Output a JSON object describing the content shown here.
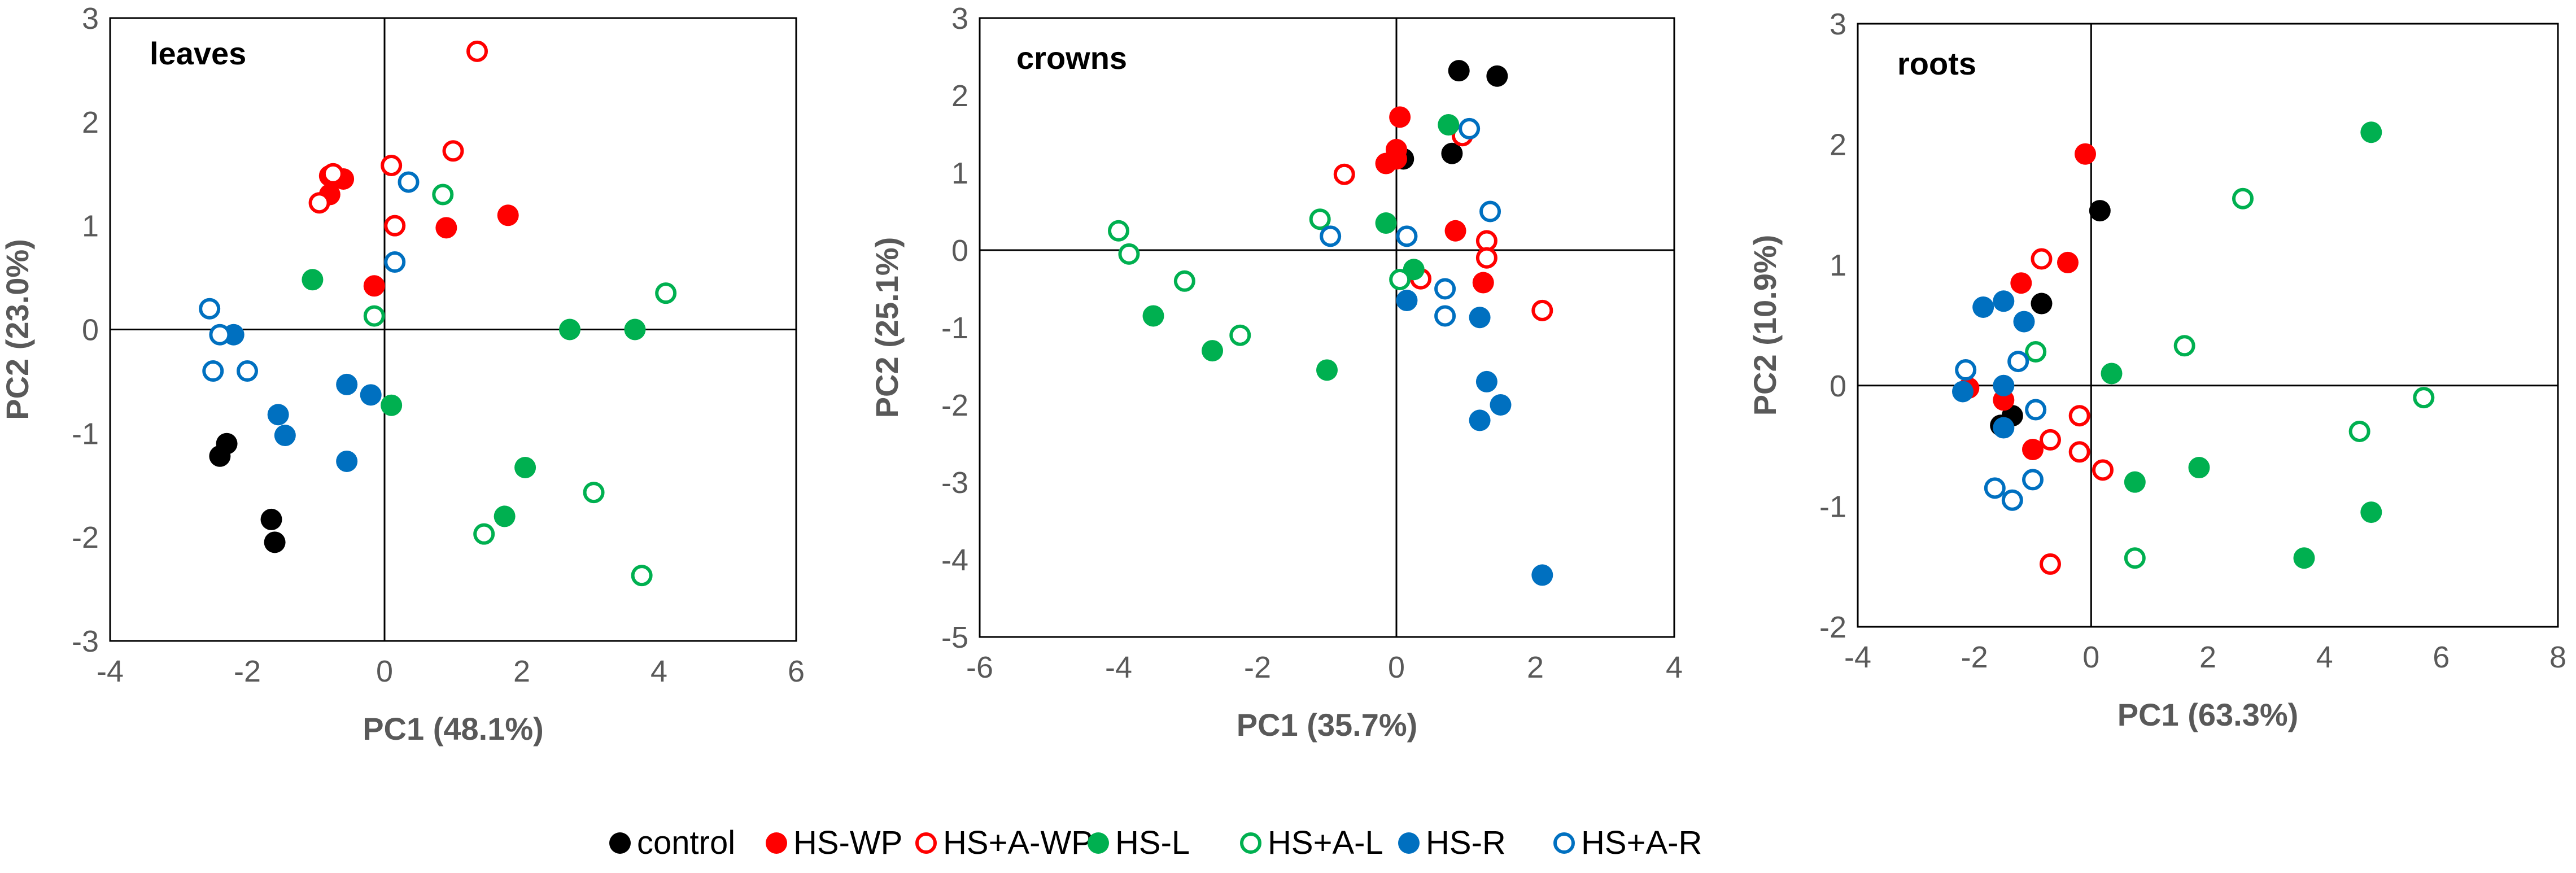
{
  "chart_data": [
    {
      "type": "scatter",
      "title": "leaves",
      "xlabel": "PC1 (48.1%)",
      "ylabel": "PC2 (23.0%)",
      "xlim": [
        -4,
        6
      ],
      "ylim": [
        -3,
        3
      ],
      "xticks": [
        -4,
        -2,
        0,
        2,
        4,
        6
      ],
      "yticks": [
        -3,
        -2,
        -1,
        0,
        1,
        2,
        3
      ],
      "series": [
        {
          "name": "control",
          "points": [
            [
              -2.3,
              -1.1
            ],
            [
              -2.4,
              -1.22
            ],
            [
              -1.65,
              -1.83
            ],
            [
              -1.6,
              -2.05
            ]
          ]
        },
        {
          "name": "HS-WP",
          "points": [
            [
              -0.8,
              1.48
            ],
            [
              -0.6,
              1.45
            ],
            [
              -0.8,
              1.3
            ],
            [
              0.9,
              0.98
            ],
            [
              1.8,
              1.1
            ],
            [
              -0.15,
              0.42
            ]
          ]
        },
        {
          "name": "HS+A-WP",
          "points": [
            [
              1.35,
              2.68
            ],
            [
              -0.75,
              1.5
            ],
            [
              -0.95,
              1.22
            ],
            [
              0.1,
              1.58
            ],
            [
              1.0,
              1.72
            ],
            [
              0.15,
              1.0
            ]
          ]
        },
        {
          "name": "HS-L",
          "points": [
            [
              -1.05,
              0.48
            ],
            [
              0.1,
              -0.73
            ],
            [
              2.7,
              0.0
            ],
            [
              3.65,
              0.0
            ],
            [
              2.05,
              -1.33
            ],
            [
              1.75,
              -1.8
            ]
          ]
        },
        {
          "name": "HS+A-L",
          "points": [
            [
              0.85,
              1.3
            ],
            [
              -0.15,
              0.13
            ],
            [
              4.1,
              0.35
            ],
            [
              3.05,
              -1.57
            ],
            [
              1.45,
              -1.97
            ],
            [
              3.75,
              -2.37
            ]
          ]
        },
        {
          "name": "HS-R",
          "points": [
            [
              -2.2,
              -0.05
            ],
            [
              -1.55,
              -0.82
            ],
            [
              -1.45,
              -1.02
            ],
            [
              -0.55,
              -0.53
            ],
            [
              -0.2,
              -0.63
            ],
            [
              -0.55,
              -1.27
            ]
          ]
        },
        {
          "name": "HS+A-R",
          "points": [
            [
              -2.55,
              0.2
            ],
            [
              -2.4,
              -0.05
            ],
            [
              -2.5,
              -0.4
            ],
            [
              -2.0,
              -0.4
            ],
            [
              0.15,
              0.65
            ],
            [
              0.35,
              1.42
            ]
          ]
        }
      ]
    },
    {
      "type": "scatter",
      "title": "crowns",
      "xlabel": "PC1 (35.7%)",
      "ylabel": "PC2 (25.1%)",
      "xlim": [
        -6,
        4
      ],
      "ylim": [
        -5,
        3
      ],
      "xticks": [
        -6,
        -4,
        -2,
        0,
        2,
        4
      ],
      "yticks": [
        -5,
        -4,
        -3,
        -2,
        -1,
        0,
        1,
        2,
        3
      ],
      "series": [
        {
          "name": "control",
          "points": [
            [
              0.9,
              2.32
            ],
            [
              1.45,
              2.25
            ],
            [
              0.1,
              1.18
            ],
            [
              0.8,
              1.25
            ]
          ]
        },
        {
          "name": "HS-WP",
          "points": [
            [
              0.05,
              1.72
            ],
            [
              0.0,
              1.3
            ],
            [
              -0.15,
              1.12
            ],
            [
              0.85,
              0.25
            ],
            [
              1.25,
              -0.42
            ],
            [
              0.0,
              1.18
            ]
          ]
        },
        {
          "name": "HS+A-WP",
          "points": [
            [
              -0.75,
              0.98
            ],
            [
              0.95,
              1.48
            ],
            [
              1.3,
              0.12
            ],
            [
              1.3,
              -0.1
            ],
            [
              2.1,
              -0.78
            ],
            [
              0.35,
              -0.37
            ]
          ]
        },
        {
          "name": "HS-L",
          "points": [
            [
              -3.5,
              -0.85
            ],
            [
              -2.65,
              -1.3
            ],
            [
              -1.0,
              -1.55
            ],
            [
              -0.15,
              0.35
            ],
            [
              0.25,
              -0.25
            ],
            [
              0.75,
              1.62
            ]
          ]
        },
        {
          "name": "HS+A-L",
          "points": [
            [
              -4.0,
              0.25
            ],
            [
              -3.85,
              -0.05
            ],
            [
              -3.05,
              -0.4
            ],
            [
              -2.25,
              -1.1
            ],
            [
              -1.1,
              0.4
            ],
            [
              0.05,
              -0.38
            ]
          ]
        },
        {
          "name": "HS-R",
          "points": [
            [
              0.15,
              -0.65
            ],
            [
              1.2,
              -0.87
            ],
            [
              1.3,
              -1.7
            ],
            [
              1.5,
              -2.0
            ],
            [
              1.2,
              -2.2
            ],
            [
              2.1,
              -4.2
            ]
          ]
        },
        {
          "name": "HS+A-R",
          "points": [
            [
              -0.95,
              0.18
            ],
            [
              0.15,
              0.18
            ],
            [
              0.7,
              -0.5
            ],
            [
              0.7,
              -0.85
            ],
            [
              1.35,
              0.5
            ],
            [
              1.05,
              1.57
            ]
          ]
        }
      ]
    },
    {
      "type": "scatter",
      "title": "roots",
      "xlabel": "PC1 (63.3%)",
      "ylabel": "PC2 (10.9%)",
      "xlim": [
        -4,
        8
      ],
      "ylim": [
        -2,
        3
      ],
      "xticks": [
        -4,
        -2,
        0,
        2,
        4,
        6,
        8
      ],
      "yticks": [
        -2,
        -1,
        0,
        1,
        2,
        3
      ],
      "series": [
        {
          "name": "control",
          "points": [
            [
              0.15,
              1.45
            ],
            [
              -0.85,
              0.68
            ],
            [
              -1.35,
              -0.25
            ],
            [
              -1.55,
              -0.33
            ]
          ]
        },
        {
          "name": "HS-WP",
          "points": [
            [
              -0.1,
              1.92
            ],
            [
              -0.4,
              1.02
            ],
            [
              -1.2,
              0.85
            ],
            [
              -1.0,
              -0.53
            ],
            [
              -1.5,
              -0.12
            ],
            [
              -2.1,
              -0.02
            ]
          ]
        },
        {
          "name": "HS+A-WP",
          "points": [
            [
              -0.85,
              1.05
            ],
            [
              -0.2,
              -0.25
            ],
            [
              -0.7,
              -0.45
            ],
            [
              -0.2,
              -0.55
            ],
            [
              0.2,
              -0.7
            ],
            [
              -0.7,
              -1.48
            ]
          ]
        },
        {
          "name": "HS-L",
          "points": [
            [
              4.8,
              2.1
            ],
            [
              0.35,
              0.1
            ],
            [
              0.75,
              -0.8
            ],
            [
              1.85,
              -0.68
            ],
            [
              4.8,
              -1.05
            ],
            [
              3.65,
              -1.43
            ]
          ]
        },
        {
          "name": "HS+A-L",
          "points": [
            [
              2.6,
              1.55
            ],
            [
              -0.95,
              0.28
            ],
            [
              1.6,
              0.33
            ],
            [
              5.7,
              -0.1
            ],
            [
              4.6,
              -0.38
            ],
            [
              0.75,
              -1.43
            ]
          ]
        },
        {
          "name": "HS-R",
          "points": [
            [
              -1.85,
              0.65
            ],
            [
              -1.5,
              0.7
            ],
            [
              -1.15,
              0.53
            ],
            [
              -1.5,
              0.0
            ],
            [
              -2.2,
              -0.05
            ],
            [
              -1.5,
              -0.35
            ]
          ]
        },
        {
          "name": "HS+A-R",
          "points": [
            [
              -2.15,
              0.13
            ],
            [
              -1.25,
              0.2
            ],
            [
              -0.95,
              -0.2
            ],
            [
              -1.65,
              -0.85
            ],
            [
              -1.35,
              -0.95
            ],
            [
              -1.0,
              -0.78
            ]
          ]
        }
      ]
    }
  ],
  "legend": [
    {
      "name": "control",
      "style": "filled",
      "color": "#000000"
    },
    {
      "name": "HS-WP",
      "style": "filled",
      "color": "#ff0000"
    },
    {
      "name": "HS+A-WP",
      "style": "hollow",
      "color": "#ff0000"
    },
    {
      "name": "HS-L",
      "style": "filled",
      "color": "#00b050"
    },
    {
      "name": "HS+A-L",
      "style": "hollow",
      "color": "#00b050"
    },
    {
      "name": "HS-R",
      "style": "filled",
      "color": "#0070c0"
    },
    {
      "name": "HS+A-R",
      "style": "hollow",
      "color": "#0070c0"
    }
  ]
}
